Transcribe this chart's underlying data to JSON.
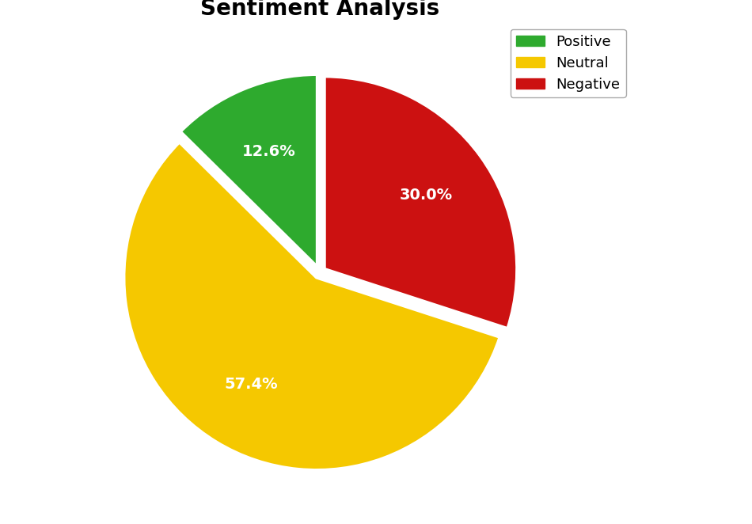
{
  "title": "Sentiment Analysis",
  "labels": [
    "Negative",
    "Neutral",
    "Positive"
  ],
  "values": [
    30.0,
    57.4,
    12.6
  ],
  "colors": [
    "#cc1111",
    "#f5c800",
    "#2eaa2e"
  ],
  "explode": [
    0.03,
    0.03,
    0.03
  ],
  "autopct_labels": [
    "30.0%",
    "57.4%",
    "12.6%"
  ],
  "startangle": 90,
  "title_fontsize": 20,
  "pct_fontsize": 14,
  "legend_fontsize": 13,
  "background_color": "#ffffff",
  "pct_distance": 0.65,
  "edge_color": "white",
  "edge_linewidth": 3.0
}
